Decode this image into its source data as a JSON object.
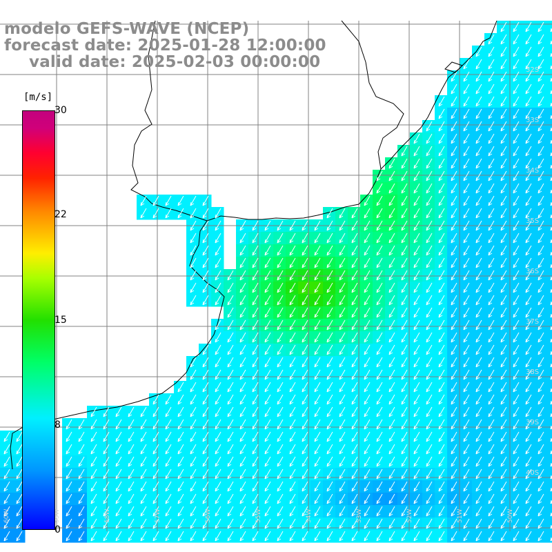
{
  "title": {
    "model": "modelo GEFS-WAVE (NCEP)",
    "forecast": "forecast date: 2025-01-28 12:00:00",
    "valid": "valid date: 2025-02-03 00:00:00"
  },
  "colorbar": {
    "unit": "[m/s]",
    "ticks": [
      "30",
      "22",
      "15",
      "8",
      "0"
    ],
    "range": [
      0,
      30
    ],
    "colors": [
      "#0000ff",
      "#00ccff",
      "#00ff66",
      "#22e000",
      "#ffee00",
      "#ff2200",
      "#c3007e"
    ]
  },
  "latitude_labels": [
    "32S",
    "33S",
    "34S",
    "35S",
    "36S",
    "37S",
    "38S",
    "39S",
    "40S"
  ],
  "longitude_labels": [
    "60W",
    "59W",
    "58W",
    "57W",
    "56W",
    "55W",
    "54W",
    "53W",
    "52W",
    "51W",
    "50W"
  ],
  "map": {
    "land_color": "#ffffff",
    "grid_color": "#808080",
    "coast_color": "#000000",
    "arrow_color": "#ffffff"
  }
}
